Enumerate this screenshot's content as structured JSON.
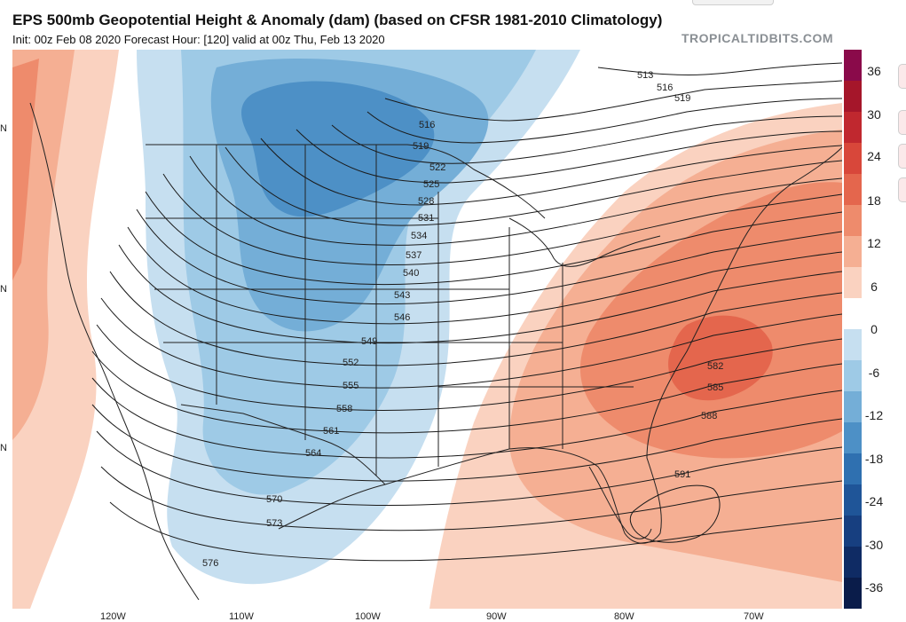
{
  "header": {
    "title": "EPS 500mb Geopotential Height & Anomaly (dam) (based on CFSR 1981-2010 Climatology)",
    "subtitle": "Init: 00z Feb 08 2020   Forecast Hour: [120]   valid at 00z Thu, Feb 13 2020",
    "brand": "TROPICALTIDBITS.COM"
  },
  "colorbar": {
    "labels": [
      "36",
      "30",
      "24",
      "18",
      "12",
      "6",
      "0",
      "-6",
      "-12",
      "-18",
      "-24",
      "-30",
      "-36"
    ],
    "colors": [
      "#8a0a4a",
      "#a5162a",
      "#c0282f",
      "#d8473a",
      "#e4664d",
      "#ee8b6c",
      "#f5af93",
      "#fad2c0",
      "#ffffff",
      "#c6dff0",
      "#9ecae6",
      "#74aed7",
      "#4d90c6",
      "#2f70b0",
      "#1f5598",
      "#173f80",
      "#0f2b64",
      "#0a1c4a"
    ]
  },
  "map": {
    "lon_labels": [
      "120W",
      "110W",
      "100W",
      "90W",
      "80W",
      "70W"
    ],
    "lat_labels": [
      "N",
      "N",
      "N"
    ],
    "contour_labels": [
      "513",
      "516",
      "519",
      "522",
      "525",
      "528",
      "531",
      "534",
      "537",
      "540",
      "543",
      "546",
      "549",
      "552",
      "555",
      "558",
      "561",
      "564",
      "570",
      "573",
      "576",
      "582",
      "585",
      "588",
      "591"
    ],
    "colors": {
      "cold_light": "#c6dff0",
      "cold_mid": "#9ecae6",
      "cold_strong": "#74aed7",
      "cold_core": "#4d90c6",
      "warm_light": "#fad2c0",
      "warm_mid": "#f5af93",
      "warm_strong": "#ee8b6c",
      "warm_core": "#e4664d",
      "contour": "#1a1a1a",
      "border": "#222222"
    }
  }
}
